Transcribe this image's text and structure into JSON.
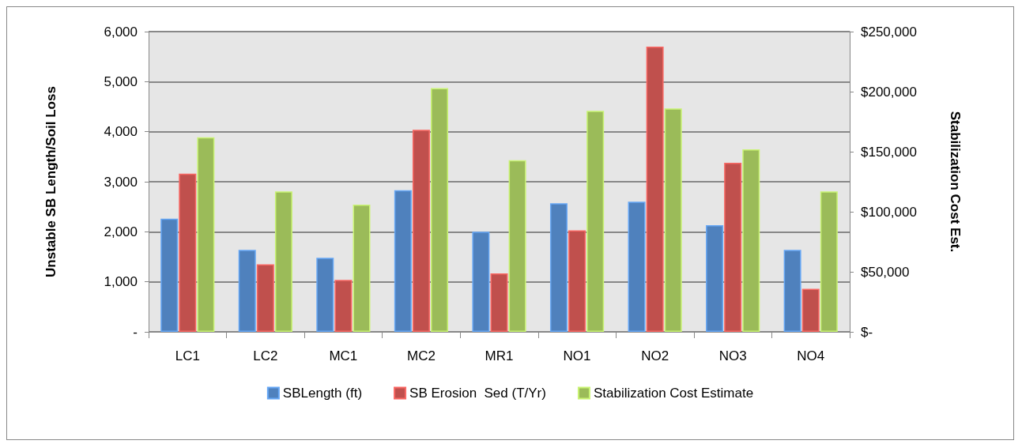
{
  "chart_data": {
    "type": "bar",
    "ylabel": "Unstable SB Length/Soil Loss",
    "y2label": "Stabilization Cost Est.",
    "categories": [
      "LC1",
      "LC2",
      "MC1",
      "MC2",
      "MR1",
      "NO1",
      "NO2",
      "NO3",
      "NO4"
    ],
    "series": [
      {
        "name": "SBLength (ft)",
        "color": "#4f81bd",
        "values": [
          2260,
          1640,
          1480,
          2830,
          2000,
          2570,
          2600,
          2130,
          1640
        ]
      },
      {
        "name": "SB Erosion  Sed (T/Yr)",
        "color": "#c0504d",
        "values": [
          3160,
          1350,
          1040,
          4040,
          1170,
          2030,
          5700,
          3380,
          860
        ]
      },
      {
        "name": "Stabilization Cost Estimate",
        "color": "#9bbb59",
        "axis": "y2",
        "values": [
          162000,
          117000,
          106000,
          203000,
          143000,
          184000,
          186000,
          152000,
          117000
        ]
      }
    ],
    "ylim": [
      0,
      6000
    ],
    "yticks": [
      {
        "value": 0,
        "label": "-"
      },
      {
        "value": 1000,
        "label": "1,000"
      },
      {
        "value": 2000,
        "label": "2,000"
      },
      {
        "value": 3000,
        "label": "3,000"
      },
      {
        "value": 4000,
        "label": "4,000"
      },
      {
        "value": 5000,
        "label": "5,000"
      },
      {
        "value": 6000,
        "label": "6,000"
      }
    ],
    "y2lim": [
      0,
      250000
    ],
    "y2ticks": [
      {
        "value": 0,
        "label": "$-"
      },
      {
        "value": 50000,
        "label": "$50,000"
      },
      {
        "value": 100000,
        "label": "$100,000"
      },
      {
        "value": 150000,
        "label": "$150,000"
      },
      {
        "value": 200000,
        "label": "$200,000"
      },
      {
        "value": 250000,
        "label": "$250,000"
      }
    ],
    "grid": "y",
    "legend": "bottom"
  }
}
